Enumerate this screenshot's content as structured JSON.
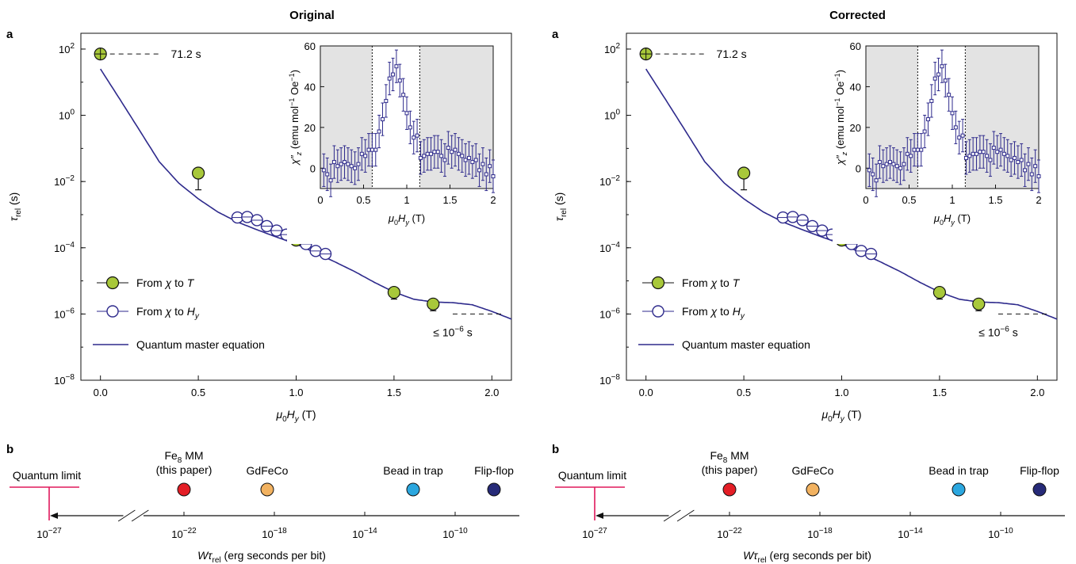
{
  "figure": {
    "panels": [
      {
        "title": "Original"
      },
      {
        "title": "Corrected"
      }
    ],
    "colors": {
      "model": "#2e2a8c",
      "temp_marker": "#a8c83a",
      "field_marker_edge": "#2e2a8c",
      "inset_shade": "#e3e3e3",
      "quantum_limit": "#e0185c",
      "fe8": "#e41e26",
      "gdfeco": "#f2b260",
      "bead": "#2ba7df",
      "flipflop": "#262a78"
    }
  },
  "chart_data": [
    {
      "panel": "Original",
      "panel_label": "a",
      "title": "Original",
      "type": "scatter",
      "xlabel": "μ0Hy (T)",
      "ylabel": "τrel (s)",
      "yscale": "log",
      "xlim": [
        -0.1,
        2.1
      ],
      "ylim": [
        1e-08,
        300
      ],
      "xticks": [
        "0.0",
        "0.5",
        "1.0",
        "1.5",
        "2.0"
      ],
      "yticks": [
        "10^2",
        "10^0",
        "10^-2",
        "10^-4",
        "10^-6",
        "10^-8"
      ],
      "legend": [
        "From χ to T",
        "From χ to Hy",
        "Quantum master equation"
      ],
      "annotations": [
        "71.2 s",
        "≤ 10^-6 s"
      ],
      "series": [
        {
          "name": "From χ to T",
          "points": [
            [
              0.0,
              71.2
            ],
            [
              0.5,
              0.018
            ],
            [
              1.0,
              0.00017
            ],
            [
              1.5,
              4.5e-06
            ],
            [
              1.7,
              2e-06
            ]
          ]
        },
        {
          "name": "From χ to Hy",
          "points": [
            [
              0.7,
              0.00082
            ],
            [
              0.75,
              0.00085
            ],
            [
              0.8,
              0.00068
            ],
            [
              0.85,
              0.00045
            ],
            [
              0.9,
              0.00033
            ],
            [
              0.95,
              0.00025
            ],
            [
              1.0,
              0.00018
            ],
            [
              1.05,
              0.00013
            ],
            [
              1.1,
              8e-05
            ],
            [
              1.15,
              6.5e-05
            ]
          ]
        },
        {
          "name": "Quantum master equation",
          "points": [
            [
              0.0,
              25
            ],
            [
              0.1,
              3
            ],
            [
              0.2,
              0.35
            ],
            [
              0.3,
              0.04
            ],
            [
              0.4,
              0.009
            ],
            [
              0.5,
              0.003
            ],
            [
              0.6,
              0.0012
            ],
            [
              0.7,
              0.0006
            ],
            [
              0.8,
              0.00035
            ],
            [
              0.9,
              0.00021
            ],
            [
              1.0,
              0.00013
            ],
            [
              1.1,
              7e-05
            ],
            [
              1.2,
              3.7e-05
            ],
            [
              1.3,
              1.9e-05
            ],
            [
              1.4,
              9e-06
            ],
            [
              1.5,
              4.6e-06
            ],
            [
              1.6,
              2.8e-06
            ],
            [
              1.7,
              2.3e-06
            ],
            [
              1.8,
              2.2e-06
            ],
            [
              1.9,
              1.9e-06
            ],
            [
              2.0,
              1.2e-06
            ],
            [
              2.1,
              7e-07
            ]
          ]
        }
      ],
      "inset": {
        "type": "scatter",
        "xlabel": "μ0Hy (T)",
        "ylabel": "χ″z (emu mol^-1 Oe^-1)",
        "xlim": [
          0,
          2
        ],
        "ylim": [
          -10,
          60
        ],
        "xticks": [
          "0",
          "0.5",
          "1",
          "1.5",
          "2"
        ],
        "yticks": [
          "0",
          "20",
          "40",
          "60"
        ],
        "shaded_regions": [
          [
            0,
            0.6
          ],
          [
            1.15,
            2
          ]
        ],
        "x": [
          0.04,
          0.08,
          0.12,
          0.16,
          0.2,
          0.24,
          0.28,
          0.32,
          0.36,
          0.4,
          0.44,
          0.48,
          0.52,
          0.56,
          0.6,
          0.64,
          0.68,
          0.72,
          0.76,
          0.8,
          0.84,
          0.88,
          0.92,
          0.96,
          1.0,
          1.04,
          1.08,
          1.12,
          1.16,
          1.2,
          1.24,
          1.28,
          1.32,
          1.36,
          1.4,
          1.44,
          1.48,
          1.52,
          1.56,
          1.6,
          1.64,
          1.68,
          1.72,
          1.76,
          1.8,
          1.84,
          1.88,
          1.92,
          1.96,
          2.0
        ],
        "y": [
          -1,
          -3,
          -6,
          3,
          1,
          2,
          3,
          2,
          1,
          0,
          2,
          7,
          6,
          9,
          9,
          9,
          18,
          24,
          33,
          44,
          46,
          50,
          43,
          36,
          27,
          20,
          15,
          16,
          5,
          6,
          7,
          7,
          8,
          8,
          6,
          4,
          10,
          8,
          9,
          7,
          6,
          4,
          5,
          3,
          4,
          -1,
          2,
          -3,
          1,
          -4
        ],
        "err": 8
      },
      "scale_panel": {
        "panel_label": "b",
        "xlabel": "Wτrel (erg seconds per bit)",
        "xscale": "log",
        "xticks": [
          "10^-27",
          "10^-22",
          "10^-18",
          "10^-14",
          "10^-10"
        ],
        "reference_line": {
          "label": "Quantum limit",
          "value": 1e-27
        },
        "points": [
          {
            "name": "Fe8 MM (this paper)",
            "value": 1e-22,
            "color": "#e41e26"
          },
          {
            "name": "GdFeCo",
            "value": 3e-19,
            "color": "#f2b260"
          },
          {
            "name": "Bead in trap",
            "value": 1e-12,
            "color": "#2ba7df"
          },
          {
            "name": "Flip-flop",
            "value": 5e-09,
            "color": "#262a78"
          }
        ]
      }
    },
    {
      "panel": "Corrected",
      "panel_label": "a",
      "title": "Corrected",
      "type": "scatter",
      "xlabel": "μ0Hy (T)",
      "ylabel": "τrel (s)",
      "yscale": "log",
      "xlim": [
        -0.1,
        2.1
      ],
      "ylim": [
        1e-08,
        300
      ],
      "xticks": [
        "0.0",
        "0.5",
        "1.0",
        "1.5",
        "2.0"
      ],
      "yticks": [
        "10^2",
        "10^0",
        "10^-2",
        "10^-4",
        "10^-6",
        "10^-8"
      ],
      "legend": [
        "From χ to T",
        "From χ to Hy",
        "Quantum master equation"
      ],
      "annotations": [
        "71.2 s",
        "≤ 10^-6 s"
      ],
      "series": [
        {
          "name": "From χ to T",
          "points": [
            [
              0.0,
              71.2
            ],
            [
              0.5,
              0.018
            ],
            [
              1.0,
              0.00017
            ],
            [
              1.5,
              4.5e-06
            ],
            [
              1.7,
              2e-06
            ]
          ]
        },
        {
          "name": "From χ to Hy",
          "points": [
            [
              0.7,
              0.00082
            ],
            [
              0.75,
              0.00085
            ],
            [
              0.8,
              0.00068
            ],
            [
              0.85,
              0.00045
            ],
            [
              0.9,
              0.00033
            ],
            [
              0.95,
              0.00025
            ],
            [
              1.0,
              0.00018
            ],
            [
              1.05,
              0.00013
            ],
            [
              1.1,
              8e-05
            ],
            [
              1.15,
              6.5e-05
            ]
          ]
        },
        {
          "name": "Quantum master equation",
          "points": [
            [
              0.0,
              25
            ],
            [
              0.1,
              3
            ],
            [
              0.2,
              0.35
            ],
            [
              0.3,
              0.04
            ],
            [
              0.4,
              0.009
            ],
            [
              0.5,
              0.003
            ],
            [
              0.6,
              0.0012
            ],
            [
              0.7,
              0.0006
            ],
            [
              0.8,
              0.00035
            ],
            [
              0.9,
              0.00021
            ],
            [
              1.0,
              0.00013
            ],
            [
              1.1,
              7e-05
            ],
            [
              1.2,
              3.7e-05
            ],
            [
              1.3,
              1.9e-05
            ],
            [
              1.4,
              9e-06
            ],
            [
              1.5,
              4.6e-06
            ],
            [
              1.6,
              2.8e-06
            ],
            [
              1.7,
              2.3e-06
            ],
            [
              1.8,
              2.2e-06
            ],
            [
              1.9,
              1.9e-06
            ],
            [
              2.0,
              1.2e-06
            ],
            [
              2.1,
              7e-07
            ]
          ]
        }
      ],
      "inset": {
        "type": "scatter",
        "xlabel": "μ0Hy (T)",
        "ylabel": "χ″z (emu mol^-1 Oe^-1)",
        "xlim": [
          0,
          2
        ],
        "ylim": [
          -10,
          60
        ],
        "xticks": [
          "0",
          "0.5",
          "1",
          "1.5",
          "2"
        ],
        "yticks": [
          "0",
          "20",
          "40",
          "60"
        ],
        "shaded_regions": [
          [
            0,
            0.6
          ],
          [
            1.15,
            2
          ]
        ],
        "x": [
          0.04,
          0.08,
          0.12,
          0.16,
          0.2,
          0.24,
          0.28,
          0.32,
          0.36,
          0.4,
          0.44,
          0.48,
          0.52,
          0.56,
          0.6,
          0.64,
          0.68,
          0.72,
          0.76,
          0.8,
          0.84,
          0.88,
          0.92,
          0.96,
          1.0,
          1.04,
          1.08,
          1.12,
          1.16,
          1.2,
          1.24,
          1.28,
          1.32,
          1.36,
          1.4,
          1.44,
          1.48,
          1.52,
          1.56,
          1.6,
          1.64,
          1.68,
          1.72,
          1.76,
          1.8,
          1.84,
          1.88,
          1.92,
          1.96,
          2.0
        ],
        "y": [
          -1,
          -3,
          -6,
          3,
          1,
          2,
          3,
          2,
          1,
          0,
          2,
          7,
          6,
          9,
          9,
          9,
          18,
          24,
          33,
          44,
          46,
          50,
          43,
          36,
          27,
          20,
          15,
          16,
          5,
          6,
          7,
          7,
          8,
          8,
          6,
          4,
          10,
          8,
          9,
          7,
          6,
          4,
          5,
          3,
          4,
          -1,
          2,
          -3,
          1,
          -4
        ],
        "err": 8
      },
      "scale_panel": {
        "panel_label": "b",
        "xlabel": "Wτrel (erg seconds per bit)",
        "xscale": "log",
        "xticks": [
          "10^-27",
          "10^-22",
          "10^-18",
          "10^-14",
          "10^-10"
        ],
        "reference_line": {
          "label": "Quantum limit",
          "value": 1e-27
        },
        "points": [
          {
            "name": "Fe8 MM (this paper)",
            "value": 1e-22,
            "color": "#e41e26"
          },
          {
            "name": "GdFeCo",
            "value": 3e-19,
            "color": "#f2b260"
          },
          {
            "name": "Bead in trap",
            "value": 1e-12,
            "color": "#2ba7df"
          },
          {
            "name": "Flip-flop",
            "value": 5e-09,
            "color": "#262a78"
          }
        ]
      }
    }
  ]
}
